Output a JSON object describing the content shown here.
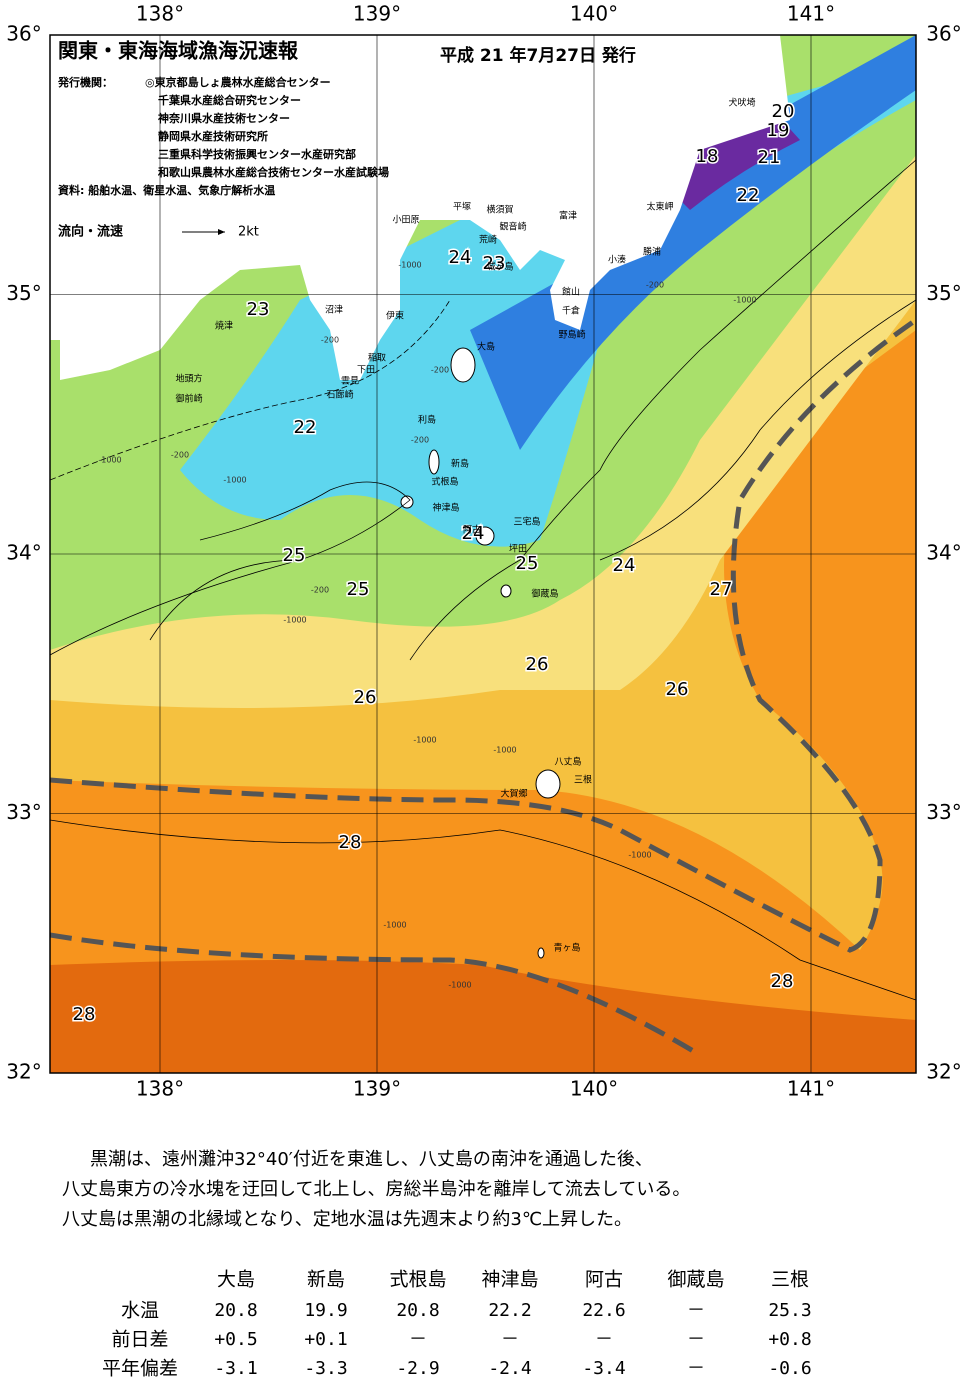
{
  "header": {
    "title": "関東・東海海域漁海況速報",
    "date": "平成 21 年7月27日 発行",
    "issuer_label": "発行機関：",
    "issuers": [
      "◎東京都島しょ農林水産総合センター",
      "千葉県水産総合研究センター",
      "神奈川県水産技術センター",
      "静岡県水産技術研究所",
      "三重県科学技術振興センター水産研究部",
      "和歌山県農林水産総合技術センター水産試験場"
    ],
    "source": "資料: 船舶水温、衛星水温、気象庁解析水温",
    "flow_label": "流向・流速",
    "flow_scale": "2kt"
  },
  "axes": {
    "lon_labels": [
      "138°",
      "139°",
      "140°",
      "141°"
    ],
    "lat_labels": [
      "36°",
      "35°",
      "34°",
      "33°",
      "32°"
    ]
  },
  "temperature_labels": [
    "20",
    "19",
    "18",
    "21",
    "22",
    "24",
    "23",
    "23",
    "22",
    "25",
    "25",
    "24",
    "25",
    "24",
    "27",
    "26",
    "26",
    "26",
    "28",
    "28",
    "28"
  ],
  "place_names": [
    "犬吠埼",
    "太東岬",
    "勝浦",
    "小湊",
    "富津",
    "平塚",
    "横須賀",
    "観音崎",
    "荒崎",
    "城ヶ島",
    "小田原",
    "館山",
    "千倉",
    "野島崎",
    "沼津",
    "伊東",
    "焼津",
    "大島",
    "稲取",
    "下田",
    "雲見",
    "石廊崎",
    "地頭方",
    "御前崎",
    "利島",
    "新島",
    "式根島",
    "神津島",
    "三宅島",
    "阿古",
    "坪田",
    "御蔵島",
    "八丈島",
    "三根",
    "大賀郷",
    "青ヶ島"
  ],
  "depth_labels": [
    "-1000",
    "-200",
    "-1000",
    "-200",
    "-200",
    "-1000",
    "-200",
    "-1000",
    "-1000",
    "-1000",
    "-1000",
    "-1000",
    "-1000",
    "-1000",
    "-200",
    "-200"
  ],
  "commentary": [
    "黒潮は、遠州灘沖32°40′付近を東進し、八丈島の南沖を通過した後、",
    "八丈島東方の冷水塊を迂回して北上し、房総半島沖を離岸して流去している。",
    "八丈島は黒潮の北縁域となり、定地水温は先週末より約3℃上昇した。"
  ],
  "table": {
    "columns": [
      "大島",
      "新島",
      "式根島",
      "神津島",
      "阿古",
      "御蔵島",
      "三根"
    ],
    "rows": [
      {
        "label": "水温",
        "values": [
          "20.8",
          "19.9",
          "20.8",
          "22.2",
          "22.6",
          "－",
          "25.3"
        ]
      },
      {
        "label": "前日差",
        "values": [
          "+0.5",
          "+0.1",
          "－",
          "－",
          "－",
          "－",
          "+0.8"
        ]
      },
      {
        "label": "平年偏差",
        "values": [
          "-3.1",
          "-3.3",
          "-2.9",
          "-2.4",
          "-3.4",
          "－",
          "-0.6"
        ]
      }
    ]
  }
}
